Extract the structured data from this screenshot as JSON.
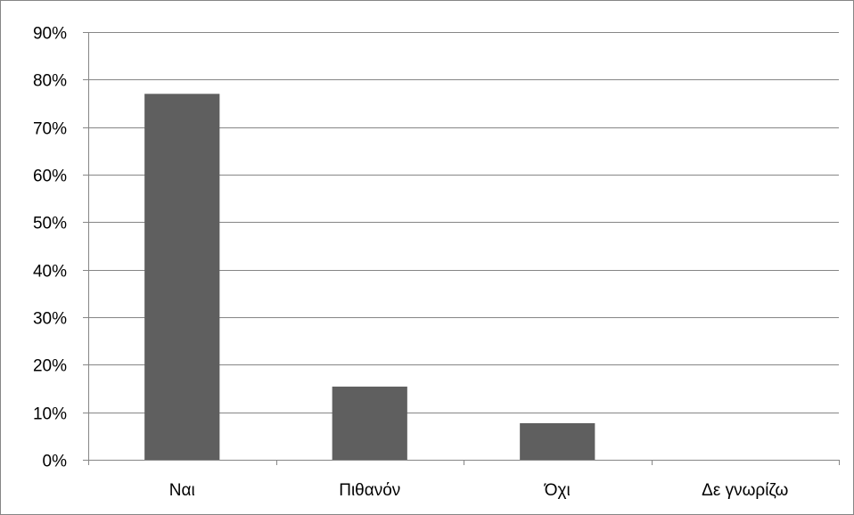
{
  "chart_data": {
    "type": "bar",
    "title": "",
    "xlabel": "",
    "ylabel": "",
    "categories": [
      "Ναι",
      "Πιθανόν",
      "Όχι",
      "Δε γνωρίζω"
    ],
    "values": [
      77,
      15.4,
      7.7,
      0
    ],
    "ylim": [
      0,
      90
    ],
    "ytick_step": 10,
    "ytick_suffix": "%",
    "grid": true,
    "legend": "none",
    "bar_color": "#5f5f5f",
    "grid_color": "#868686"
  }
}
